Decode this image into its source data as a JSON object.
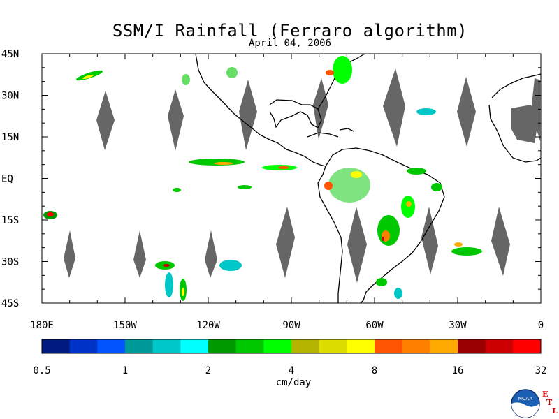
{
  "title": "SSM/I Rainfall (Ferraro algorithm)",
  "date": "April 04, 2006",
  "map": {
    "lon_range": [
      180,
      360
    ],
    "lat_range": [
      -45,
      45
    ],
    "lat_labels": [
      "45N",
      "30N",
      "15N",
      "EQ",
      "15S",
      "30S",
      "45S"
    ],
    "lon_labels": [
      "180E",
      "150W",
      "120W",
      "90W",
      "60W",
      "30W",
      "0"
    ],
    "land_color": "#000000",
    "no_data_color": "#666666"
  },
  "colorbar": {
    "unit": "cm/day",
    "tick_labels": [
      "0.5",
      "1",
      "2",
      "4",
      "8",
      "16",
      "32"
    ],
    "colors": [
      "#001a80",
      "#0033c8",
      "#0055ff",
      "#009999",
      "#00c8c8",
      "#00ffff",
      "#009900",
      "#00c800",
      "#00ff00",
      "#b3b300",
      "#dddd00",
      "#ffff00",
      "#ff5500",
      "#ff8000",
      "#ffaa00",
      "#990000",
      "#cc0000",
      "#ff0000"
    ]
  },
  "logo": {
    "text": "NOAA",
    "letters": [
      "E",
      "T",
      "L"
    ]
  }
}
